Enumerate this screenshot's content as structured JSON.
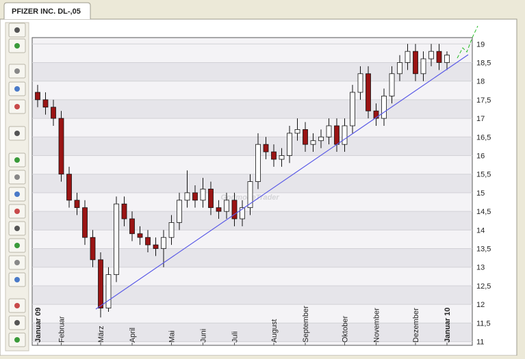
{
  "tab": {
    "title": "PFIZER INC. DL-,05"
  },
  "chart_data": {
    "type": "candlestick",
    "watermark": "GodmodeTrader",
    "categories": [
      "Januar 09",
      null,
      null,
      "Februar",
      null,
      null,
      null,
      null,
      "März",
      null,
      null,
      null,
      "April",
      null,
      null,
      null,
      null,
      "Mai",
      null,
      null,
      null,
      "Juni",
      null,
      null,
      null,
      "Juli",
      null,
      null,
      null,
      null,
      "August",
      null,
      null,
      null,
      "September",
      null,
      null,
      null,
      null,
      "Oktober",
      null,
      null,
      null,
      "November",
      null,
      null,
      null,
      null,
      "Dezember",
      null,
      null,
      null,
      "Januar 10"
    ],
    "open": [
      17.7,
      17.5,
      17.3,
      17.0,
      15.5,
      14.8,
      14.6,
      13.8,
      13.2,
      11.9,
      12.8,
      14.7,
      14.3,
      13.9,
      13.8,
      13.6,
      13.5,
      13.8,
      14.2,
      14.8,
      15.0,
      14.8,
      15.1,
      14.6,
      14.5,
      14.8,
      14.3,
      14.6,
      15.3,
      16.3,
      16.1,
      15.9,
      16.0,
      16.6,
      16.7,
      16.3,
      16.4,
      16.5,
      16.8,
      16.3,
      16.8,
      17.7,
      18.2,
      17.2,
      17.0,
      17.6,
      18.2,
      18.5,
      18.8,
      18.2,
      18.6,
      18.8,
      18.5
    ],
    "high": [
      17.9,
      17.7,
      17.5,
      17.2,
      15.7,
      15.0,
      14.8,
      14.0,
      13.4,
      13.0,
      14.9,
      14.9,
      14.5,
      14.1,
      14.0,
      13.8,
      14.0,
      14.4,
      15.0,
      15.6,
      15.2,
      15.4,
      15.3,
      14.8,
      15.0,
      15.0,
      14.8,
      15.5,
      16.6,
      16.5,
      16.3,
      16.2,
      16.8,
      17.0,
      16.9,
      16.6,
      16.7,
      17.0,
      17.0,
      17.0,
      17.9,
      18.4,
      18.4,
      17.4,
      17.8,
      18.4,
      18.7,
      19.0,
      19.0,
      18.8,
      19.0,
      19.0,
      18.8
    ],
    "low": [
      17.3,
      17.1,
      16.8,
      15.3,
      14.6,
      14.4,
      13.6,
      13.0,
      11.65,
      11.8,
      12.6,
      14.1,
      13.7,
      13.6,
      13.4,
      13.3,
      13.0,
      13.6,
      14.0,
      14.6,
      14.6,
      14.6,
      14.4,
      14.3,
      14.3,
      14.1,
      14.1,
      14.4,
      15.1,
      15.9,
      15.7,
      15.7,
      15.8,
      16.4,
      16.1,
      16.1,
      16.2,
      16.3,
      16.1,
      16.1,
      16.6,
      17.5,
      17.0,
      16.8,
      16.8,
      17.4,
      18.0,
      18.3,
      18.0,
      18.0,
      18.4,
      18.3,
      18.3
    ],
    "close": [
      17.5,
      17.3,
      17.0,
      15.5,
      14.8,
      14.6,
      13.8,
      13.2,
      11.9,
      12.8,
      14.7,
      14.3,
      13.9,
      13.8,
      13.6,
      13.5,
      13.8,
      14.2,
      14.8,
      15.0,
      14.8,
      15.1,
      14.6,
      14.5,
      14.8,
      14.3,
      14.6,
      15.3,
      16.3,
      16.1,
      15.9,
      16.0,
      16.6,
      16.7,
      16.3,
      16.4,
      16.5,
      16.8,
      16.3,
      16.8,
      17.7,
      18.2,
      17.2,
      17.0,
      17.6,
      18.2,
      18.5,
      18.8,
      18.2,
      18.6,
      18.8,
      18.5,
      18.7
    ],
    "up_color": "#ffffff",
    "down_color": "#9a1414",
    "ylim": [
      10.9,
      19.17
    ],
    "yticks": [
      11,
      {
        "value": 11.5,
        "label": "11,5"
      },
      12,
      {
        "value": 12.5,
        "label": "12,5"
      },
      13,
      {
        "value": 13.5,
        "label": "13,5"
      },
      14,
      {
        "value": 14.5,
        "label": "14,5"
      },
      15,
      {
        "value": 15.5,
        "label": "15,5"
      },
      16,
      {
        "value": 16.5,
        "label": "16,5"
      },
      17,
      {
        "value": 17.5,
        "label": "17,5"
      },
      18,
      {
        "value": 18.5,
        "label": "18,5"
      },
      19
    ],
    "grid": true
  }
}
